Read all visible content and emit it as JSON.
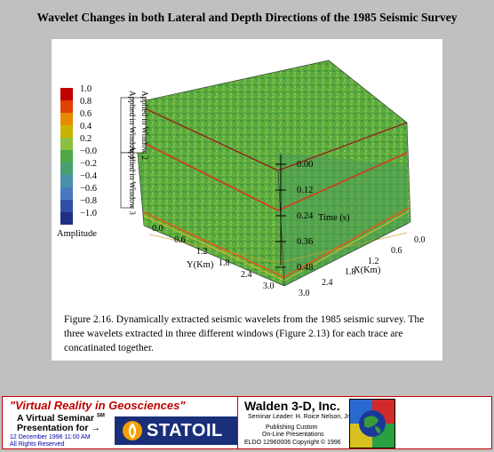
{
  "title": "Wavelet Changes in both Lateral and Depth Directions of the 1985 Seismic Survey",
  "figure": {
    "colorbar": {
      "ticks": [
        "1.0",
        "0.8",
        "0.6",
        "0.4",
        "0.2",
        "−0.0",
        "−0.2",
        "−0.4",
        "−0.6",
        "−0.8",
        "−1.0"
      ],
      "label": "Amplitude",
      "colors": [
        "#c00000",
        "#e04000",
        "#e88a00",
        "#c8b400",
        "#8cc040",
        "#50a848",
        "#48a070",
        "#4a90a8",
        "#4a78c0",
        "#3050a8",
        "#203080"
      ]
    },
    "window_labels": [
      "Applied in Window 1",
      "Applied in Window 2",
      "Applied in Window 3"
    ],
    "time_ticks": [
      "0.00",
      "0.12",
      "0.24",
      "0.36",
      "0.48"
    ],
    "time_axis_label": "Time (s)",
    "y_axis": {
      "ticks": [
        "0.0",
        "0.6",
        "1.2",
        "1.8",
        "2.4",
        "3.0"
      ],
      "label": "Y(Km)"
    },
    "x_axis": {
      "ticks": [
        "0.0",
        "0.6",
        "1.2",
        "1.8",
        "2.4",
        "3.0"
      ],
      "label": "X(Km)"
    }
  },
  "caption": "Figure 2.16. Dynamically extracted seismic wavelets from the 1985 seismic survey. The three wavelets extracted in three different windows (Figure 2.13) for each trace are concatinated together.",
  "banner": {
    "vr_title": "\"Virtual Reality in Geosciences\"",
    "seminar": "A Virtual Seminar",
    "seminar_sup": "SM",
    "presentation": "Presentation for",
    "date": "12 December 1996 11:00 AM",
    "rights": "All Rights Reserved",
    "statoil": "STATOIL",
    "company": "Walden 3-D, Inc.",
    "leader": "Seminar Leader: H. Roice Nelson, Jr.",
    "pub1": "Publishing Custom",
    "pub2": "On-Line Presentations",
    "eldo": "ELDO 12960006 Copyright © 1996"
  }
}
